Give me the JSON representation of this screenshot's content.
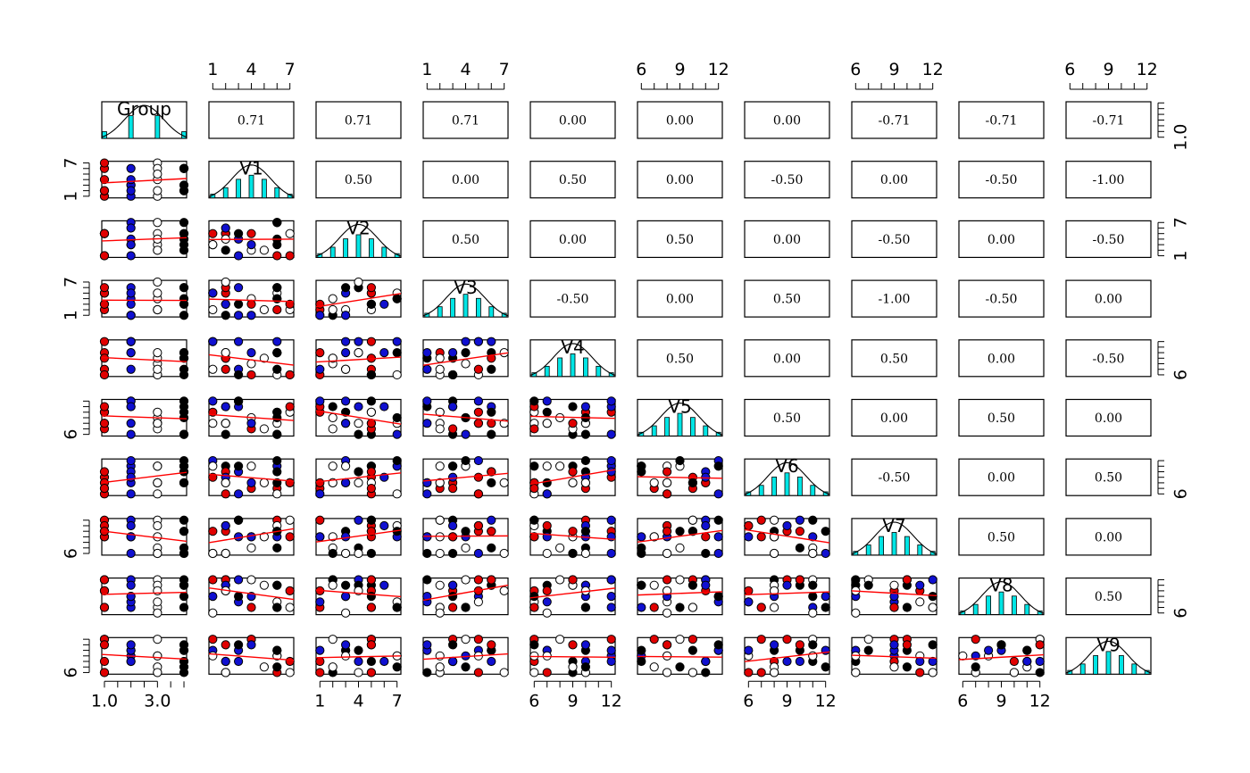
{
  "chart_data": {
    "type": "scatter-matrix",
    "variables": [
      "Group",
      "V1",
      "V2",
      "V3",
      "V4",
      "V5",
      "V6",
      "V7",
      "V8",
      "V9"
    ],
    "ranges": [
      [
        0.9,
        4.1
      ],
      [
        0.7,
        7.3
      ],
      [
        0.7,
        7.3
      ],
      [
        0.7,
        7.3
      ],
      [
        5.7,
        12.3
      ],
      [
        5.7,
        12.3
      ],
      [
        5.7,
        12.3
      ],
      [
        5.7,
        12.3
      ],
      [
        5.7,
        12.3
      ],
      [
        5.7,
        12.3
      ]
    ],
    "correlations": [
      [
        null,
        "0.71",
        "0.71",
        "0.71",
        "0.00",
        "0.00",
        "0.00",
        "-0.71",
        "-0.71",
        "-0.71"
      ],
      [
        null,
        null,
        "0.50",
        "0.00",
        "0.50",
        "0.00",
        "-0.50",
        "0.00",
        "-0.50",
        "-1.00"
      ],
      [
        null,
        null,
        null,
        "0.50",
        "0.00",
        "0.50",
        "0.00",
        "-0.50",
        "0.00",
        "-0.50"
      ],
      [
        null,
        null,
        null,
        null,
        "-0.50",
        "0.00",
        "0.50",
        "-1.00",
        "-0.50",
        "0.00"
      ],
      [
        null,
        null,
        null,
        null,
        null,
        "0.50",
        "0.00",
        "0.50",
        "0.00",
        "-0.50"
      ],
      [
        null,
        null,
        null,
        null,
        null,
        null,
        "0.50",
        "0.00",
        "0.50",
        "0.00"
      ],
      [
        null,
        null,
        null,
        null,
        null,
        null,
        null,
        "-0.50",
        "0.00",
        "0.50"
      ],
      [
        null,
        null,
        null,
        null,
        null,
        null,
        null,
        null,
        "0.50",
        "0.00"
      ],
      [
        null,
        null,
        null,
        null,
        null,
        null,
        null,
        null,
        null,
        "0.50"
      ],
      [
        null,
        null,
        null,
        null,
        null,
        null,
        null,
        null,
        null,
        null
      ]
    ],
    "axes": {
      "top": [
        {
          "col": 1,
          "ticks": [
            1,
            4,
            7
          ]
        },
        {
          "col": 3,
          "ticks": [
            1,
            4,
            7
          ]
        },
        {
          "col": 5,
          "ticks": [
            6,
            9,
            12
          ]
        },
        {
          "col": 7,
          "ticks": [
            6,
            9,
            12
          ]
        },
        {
          "col": 9,
          "ticks": [
            6,
            9,
            12
          ]
        }
      ],
      "bottom": [
        {
          "col": 0,
          "ticks": [
            1.0,
            3.0
          ],
          "labels": [
            "1.0",
            "3.0"
          ]
        },
        {
          "col": 2,
          "ticks": [
            1,
            4,
            7
          ]
        },
        {
          "col": 4,
          "ticks": [
            6,
            9,
            12
          ]
        },
        {
          "col": 6,
          "ticks": [
            6,
            9,
            12
          ]
        },
        {
          "col": 8,
          "ticks": [
            6,
            9,
            12
          ]
        }
      ],
      "left": [
        {
          "row": 1,
          "ticks": [
            1,
            7
          ]
        },
        {
          "row": 3,
          "ticks": [
            1,
            7
          ]
        },
        {
          "row": 5,
          "ticks": [
            6
          ]
        },
        {
          "row": 7,
          "ticks": [
            6
          ]
        },
        {
          "row": 9,
          "ticks": [
            6
          ]
        }
      ],
      "right": [
        {
          "row": 0,
          "ticks": [
            1.0
          ],
          "labels": [
            "1.0"
          ]
        },
        {
          "row": 2,
          "ticks": [
            1,
            7
          ]
        },
        {
          "row": 4,
          "ticks": [
            6
          ]
        },
        {
          "row": 6,
          "ticks": [
            6
          ]
        },
        {
          "row": 8,
          "ticks": [
            6
          ]
        }
      ]
    },
    "group_colors": [
      "#e00000",
      "#1010d0",
      "#ffffff",
      "#000000"
    ],
    "histogram_fill": "#00e5e5",
    "fit_line_color": "#ff0000"
  }
}
